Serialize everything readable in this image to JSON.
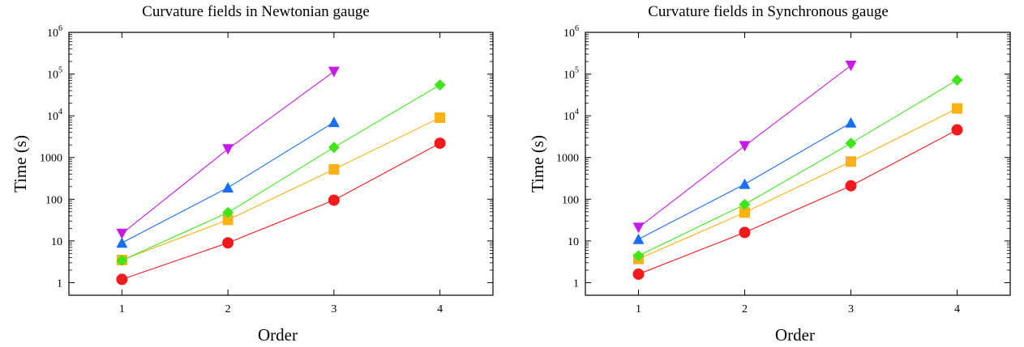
{
  "chart_data": [
    {
      "type": "line",
      "title": "Curvature fields in Newtonian gauge",
      "xlabel": "Order",
      "ylabel": "Time (s)",
      "yscale": "log",
      "xlim": [
        0.5,
        4.5
      ],
      "ylim": [
        0.5,
        1000000
      ],
      "x_ticks": [
        "1",
        "2",
        "3",
        "4"
      ],
      "y_ticks": [
        "1",
        "10",
        "100",
        "1000",
        "10^4",
        "10^5",
        "10^6"
      ],
      "grid": false,
      "series": [
        {
          "marker": "circle",
          "color": "#f21a1a",
          "x": [
            1,
            2,
            3,
            4
          ],
          "values": [
            1.2,
            9,
            95,
            2200
          ]
        },
        {
          "marker": "square",
          "color": "#f9b115",
          "x": [
            1,
            2,
            3,
            4
          ],
          "values": [
            3.5,
            32,
            520,
            9000
          ]
        },
        {
          "marker": "diamond",
          "color": "#3fe51b",
          "x": [
            1,
            2,
            3,
            4
          ],
          "values": [
            3.4,
            48,
            1750,
            55000
          ]
        },
        {
          "marker": "triangle-up",
          "color": "#1a6ef2",
          "x": [
            1,
            2,
            3
          ],
          "values": [
            9,
            190,
            7000
          ]
        },
        {
          "marker": "triangle-down",
          "color": "#c51ae8",
          "x": [
            1,
            2,
            3
          ],
          "values": [
            15,
            1600,
            115000
          ]
        }
      ]
    },
    {
      "type": "line",
      "title": "Curvature fields in Synchronous gauge",
      "xlabel": "Order",
      "ylabel": "Time (s)",
      "yscale": "log",
      "xlim": [
        0.5,
        4.5
      ],
      "ylim": [
        0.5,
        1000000
      ],
      "x_ticks": [
        "1",
        "2",
        "3",
        "4"
      ],
      "y_ticks": [
        "1",
        "10",
        "100",
        "1000",
        "10^4",
        "10^5",
        "10^6"
      ],
      "grid": false,
      "series": [
        {
          "marker": "circle",
          "color": "#f21a1a",
          "x": [
            1,
            2,
            3,
            4
          ],
          "values": [
            1.6,
            16,
            210,
            4600
          ]
        },
        {
          "marker": "square",
          "color": "#f9b115",
          "x": [
            1,
            2,
            3,
            4
          ],
          "values": [
            3.7,
            48,
            800,
            15000
          ]
        },
        {
          "marker": "diamond",
          "color": "#3fe51b",
          "x": [
            1,
            2,
            3,
            4
          ],
          "values": [
            4.4,
            75,
            2200,
            72000
          ]
        },
        {
          "marker": "triangle-up",
          "color": "#1a6ef2",
          "x": [
            1,
            2,
            3
          ],
          "values": [
            11,
            230,
            6800
          ]
        },
        {
          "marker": "triangle-down",
          "color": "#c51ae8",
          "x": [
            1,
            2,
            3
          ],
          "values": [
            21,
            1900,
            160000
          ]
        }
      ]
    }
  ]
}
